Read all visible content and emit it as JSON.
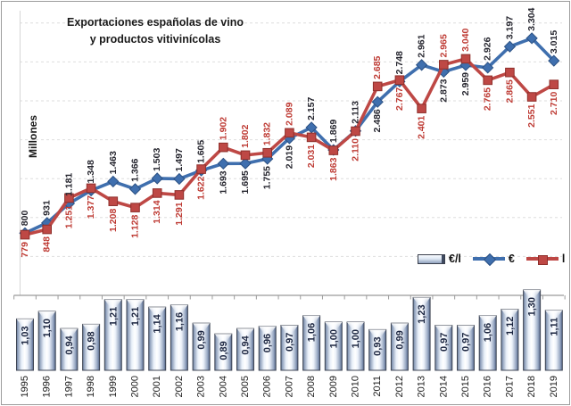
{
  "title": {
    "line1": "Exportaciones españolas de vino",
    "line2": "y productos vitivinícolas"
  },
  "y_axis_label": "Millones",
  "legend": {
    "items": [
      {
        "name": "eur-per-litre",
        "label": "€/l"
      },
      {
        "name": "euros",
        "label": "€"
      },
      {
        "name": "litres",
        "label": "l"
      }
    ]
  },
  "colors": {
    "euros_line": "#3F6FAE",
    "euros_marker_stroke": "#2C5183",
    "euros_label_text": "#25252E",
    "litres_line": "#BE4845",
    "litres_marker_stroke": "#8E2F2B",
    "litres_label_text": "#BE3A33",
    "bar_border": "#3F4654",
    "bar_dark": "#5E7092",
    "bar_label_text": "#1B2540",
    "gridline": "#DEDEDE",
    "axis": "#9B9B9B",
    "y_axis_line": "#D6D6D6",
    "year_text": "#1A1A1A"
  },
  "chart_data": {
    "type": "combo",
    "years": [
      1995,
      1996,
      1997,
      1998,
      1999,
      2000,
      2001,
      2002,
      2003,
      2004,
      2005,
      2006,
      2007,
      2008,
      2009,
      2010,
      2011,
      2012,
      2013,
      2014,
      2015,
      2016,
      2017,
      2018,
      2019
    ],
    "charts": [
      {
        "type": "line",
        "title": "Exportaciones españolas de vino y productos vitivinícolas",
        "ylabel": "Millones",
        "ylim": [
          0,
          3500
        ],
        "gridline_values": [
          500,
          1000,
          1500,
          2000,
          2500,
          3000,
          3500
        ],
        "grid": "dashed",
        "legend_position": "bottom-right",
        "red_label_above_years": [
          2004,
          2005,
          2006,
          2007,
          2011,
          2014,
          2015
        ],
        "series": [
          {
            "name": "€",
            "marker": "diamond",
            "values": [
              800,
              931,
              1181,
              1348,
              1463,
              1366,
              1503,
              1497,
              1605,
              1693,
              1695,
              1755,
              2019,
              2157,
              1869,
              2113,
              2486,
              2748,
              2961,
              2873,
              2959,
              2926,
              3197,
              3304,
              3015
            ],
            "labels": [
              "800",
              "931",
              "1.181",
              "1.348",
              "1.463",
              "1.366",
              "1.503",
              "1.497",
              "1.605",
              "1.693",
              "1.695",
              "1.755",
              "2.019",
              "2.157",
              "1.869",
              "2.113",
              "2.486",
              "2.748",
              "2.961",
              "2.873",
              "2.959",
              "2.926",
              "3.197",
              "3.304",
              "3.015"
            ]
          },
          {
            "name": "l",
            "marker": "square",
            "values": [
              779,
              848,
              1251,
              1377,
              1208,
              1128,
              1314,
              1291,
              1622,
              1902,
              1802,
              1832,
              2089,
              2031,
              1863,
              2110,
              2685,
              2767,
              2401,
              2965,
              3040,
              2765,
              2865,
              2551,
              2710
            ],
            "labels": [
              "779",
              "848",
              "1.251",
              "1.377",
              "1.208",
              "1.128",
              "1.314",
              "1.291",
              "1.622",
              "1.902",
              "1.802",
              "1.832",
              "2.089",
              "2.031",
              "1.863",
              "2.110",
              "2.685",
              "2.767",
              "2.401",
              "2.965",
              "3.040",
              "2.765",
              "2.865",
              "2.551",
              "2.710"
            ]
          }
        ]
      },
      {
        "type": "bar",
        "name": "€/l",
        "values": [
          1.03,
          1.1,
          0.94,
          0.98,
          1.21,
          1.21,
          1.14,
          1.16,
          0.99,
          0.89,
          0.94,
          0.96,
          0.97,
          1.06,
          1.0,
          1.0,
          0.93,
          0.99,
          1.23,
          0.97,
          0.97,
          1.06,
          1.12,
          1.3,
          1.11
        ],
        "labels": [
          "1,03",
          "1,10",
          "0,94",
          "0,98",
          "1,21",
          "1,21",
          "1,14",
          "1,16",
          "0,99",
          "0,89",
          "0,94",
          "0,96",
          "0,97",
          "1,06",
          "1,00",
          "1,00",
          "0,93",
          "0,99",
          "1,23",
          "0,97",
          "0,97",
          "1,06",
          "1,12",
          "1,30",
          "1,11"
        ]
      }
    ]
  }
}
